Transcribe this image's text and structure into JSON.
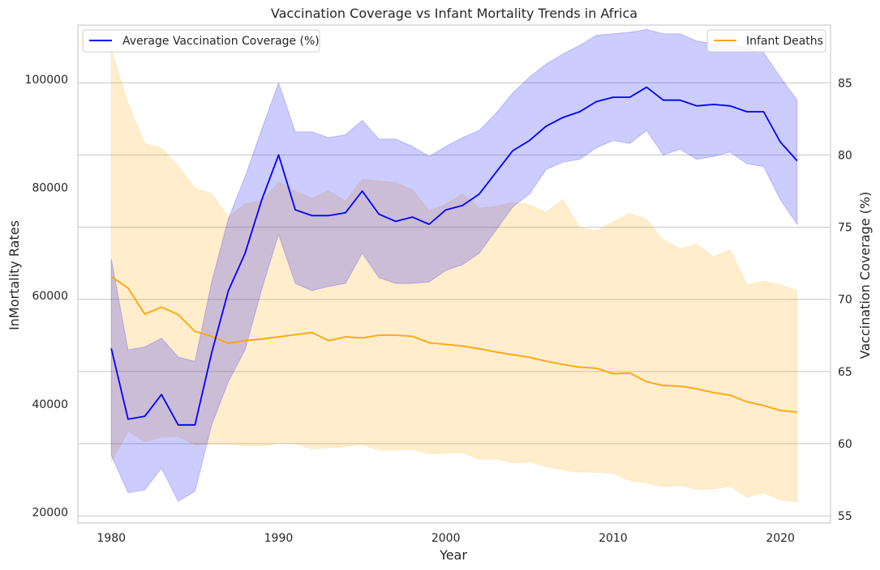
{
  "chart_data": {
    "type": "line",
    "title": "Vaccination Coverage vs Infant Mortality Trends in Africa",
    "xlabel": "Year",
    "ylabel_left": "InMortality Rates",
    "ylabel_right": "Vaccination Coverage (%)",
    "xlim": [
      1978,
      2023
    ],
    "ylim_left": [
      18000,
      110000
    ],
    "ylim_right": [
      54.5,
      89
    ],
    "x_ticks": [
      1980,
      1990,
      2000,
      2010,
      2020
    ],
    "y_left_ticks": [
      20000,
      40000,
      60000,
      80000,
      100000
    ],
    "y_right_ticks": [
      55,
      60,
      65,
      70,
      75,
      80,
      85
    ],
    "grid": true,
    "x": [
      1980,
      1981,
      1982,
      1983,
      1984,
      1985,
      1986,
      1987,
      1988,
      1989,
      1990,
      1991,
      1992,
      1993,
      1994,
      1995,
      1996,
      1997,
      1998,
      1999,
      2000,
      2001,
      2002,
      2003,
      2004,
      2005,
      2006,
      2007,
      2008,
      2009,
      2010,
      2011,
      2012,
      2013,
      2014,
      2015,
      2016,
      2017,
      2018,
      2019,
      2020,
      2021
    ],
    "series": [
      {
        "name": "Infant Deaths",
        "axis": "left",
        "color": "#ffa500",
        "band_color": "#ffe7b8",
        "legend_position": "top-right",
        "values": [
          63500,
          61400,
          56600,
          57900,
          56500,
          53400,
          52500,
          51200,
          51700,
          52000,
          52400,
          52800,
          53200,
          51700,
          52400,
          52200,
          52700,
          52700,
          52500,
          51300,
          51000,
          50700,
          50200,
          49600,
          49100,
          48600,
          47900,
          47300,
          46800,
          46600,
          45600,
          45700,
          44100,
          43400,
          43300,
          42800,
          42100,
          41600,
          40400,
          39700,
          38800,
          38500
        ],
        "lower": [
          29200,
          35000,
          33000,
          33900,
          34000,
          32400,
          32600,
          32600,
          32300,
          32200,
          32800,
          32700,
          31700,
          31900,
          32100,
          32500,
          31500,
          31500,
          31600,
          30800,
          30900,
          31000,
          29800,
          29800,
          29100,
          29300,
          28400,
          27800,
          27400,
          27400,
          27200,
          25900,
          25400,
          24700,
          25000,
          24200,
          24300,
          24800,
          22800,
          23600,
          22300,
          21900
        ],
        "upper": [
          105500,
          95500,
          88100,
          87300,
          83900,
          79900,
          78800,
          74500,
          77000,
          77600,
          81000,
          79300,
          78000,
          79400,
          77500,
          81500,
          81200,
          80900,
          79600,
          75700,
          76900,
          78800,
          76200,
          76500,
          77300,
          76800,
          75400,
          77800,
          72600,
          72000,
          73700,
          75200,
          74100,
          70300,
          68700,
          69500,
          67200,
          68500,
          62000,
          62700,
          62000,
          60900
        ]
      },
      {
        "name": "Average Vaccination Coverage (%)",
        "axis": "right",
        "color": "#0000ff",
        "band_color": "#ccccff",
        "legend_position": "top-left",
        "values": [
          66.6,
          61.7,
          61.9,
          63.4,
          61.3,
          61.3,
          66.3,
          70.6,
          73.2,
          76.9,
          80.0,
          76.2,
          75.8,
          75.8,
          76.0,
          77.5,
          75.9,
          75.4,
          75.7,
          75.2,
          76.2,
          76.5,
          77.3,
          78.8,
          80.3,
          81.0,
          82.0,
          82.6,
          83.0,
          83.7,
          84.0,
          84.0,
          84.7,
          83.8,
          83.8,
          83.4,
          83.5,
          83.4,
          83.0,
          83.0,
          80.9,
          79.6
        ],
        "lower": [
          59.2,
          56.6,
          56.8,
          58.3,
          56.0,
          56.7,
          61.3,
          64.3,
          66.5,
          70.7,
          74.5,
          71.1,
          70.6,
          70.9,
          71.1,
          73.2,
          71.5,
          71.1,
          71.1,
          71.2,
          72.0,
          72.4,
          73.2,
          74.8,
          76.4,
          77.3,
          79.0,
          79.5,
          79.7,
          80.5,
          81.0,
          80.8,
          81.7,
          80.0,
          80.4,
          79.7,
          79.9,
          80.2,
          79.4,
          79.2,
          76.9,
          75.2
        ],
        "upper": [
          72.8,
          66.5,
          66.7,
          67.3,
          66.0,
          65.7,
          71.2,
          75.6,
          78.5,
          81.8,
          85.0,
          81.6,
          81.6,
          81.2,
          81.4,
          82.4,
          81.1,
          81.1,
          80.6,
          79.9,
          80.6,
          81.2,
          81.7,
          82.9,
          84.3,
          85.4,
          86.3,
          87.0,
          87.6,
          88.3,
          88.4,
          88.5,
          88.7,
          88.4,
          88.4,
          87.9,
          87.7,
          87.7,
          87.4,
          87.1,
          85.4,
          83.8
        ]
      }
    ]
  }
}
